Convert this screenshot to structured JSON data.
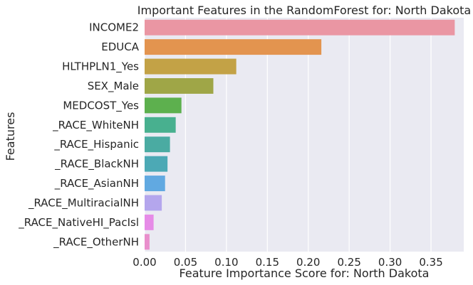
{
  "chart_data": {
    "type": "bar",
    "orientation": "horizontal",
    "title": "Important Features in the RandomForest for: North Dakota",
    "xlabel": "Feature Importance Score for: North Dakota",
    "ylabel": "Features",
    "xlim": [
      0,
      0.39
    ],
    "xticks": [
      "0.00",
      "0.05",
      "0.10",
      "0.15",
      "0.20",
      "0.25",
      "0.30",
      "0.35"
    ],
    "grid": true,
    "categories": [
      "INCOME2",
      "EDUCA",
      "HLTHPLN1_Yes",
      "SEX_Male",
      "MEDCOST_Yes",
      "_RACE_WhiteNH",
      "_RACE_Hispanic",
      "_RACE_BlackNH",
      "_RACE_AsianNH",
      "_RACE_MultiracialNH",
      "_RACE_NativeHI_PacIsl",
      "_RACE_OtherNH"
    ],
    "values": [
      0.379,
      0.216,
      0.112,
      0.084,
      0.045,
      0.038,
      0.031,
      0.028,
      0.025,
      0.021,
      0.011,
      0.006
    ],
    "colors": [
      "#ea96a3",
      "#e3944f",
      "#c3a246",
      "#9fa647",
      "#5db04e",
      "#48b08f",
      "#4aaba2",
      "#4ca9b5",
      "#61a9e1",
      "#b4a6ed",
      "#e68be7",
      "#e98fcc"
    ],
    "plot_background": "#eaeaf2",
    "grid_color": "#ffffff"
  }
}
